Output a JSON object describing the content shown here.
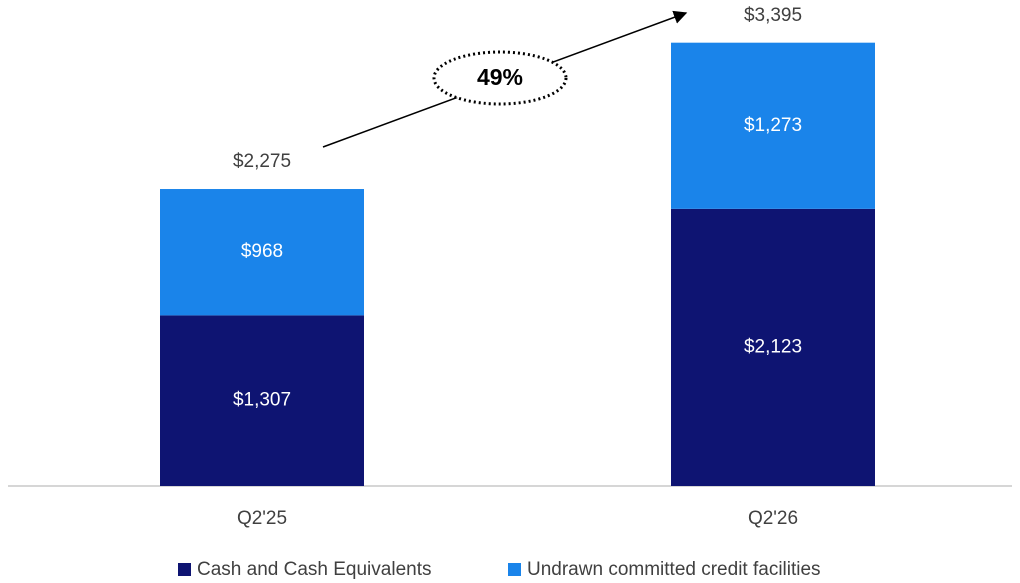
{
  "chart_data": {
    "type": "bar",
    "stacked": true,
    "categories": [
      "Q2'25",
      "Q2'26"
    ],
    "series": [
      {
        "name": "Cash and Cash Equivalents",
        "color": "#0e1472",
        "values": [
          1307,
          2123
        ],
        "value_labels": [
          "$1,307",
          "$2,123"
        ]
      },
      {
        "name": "Undrawn committed credit facilities",
        "color": "#1a84ea",
        "values": [
          968,
          1273
        ],
        "value_labels": [
          "$968",
          "$1,273"
        ]
      }
    ],
    "totals": [
      2275,
      3395
    ],
    "total_labels": [
      "$2,275",
      "$3,395"
    ],
    "annotation": "49%",
    "ylim": [
      0,
      3700
    ],
    "legend": "bottom"
  }
}
